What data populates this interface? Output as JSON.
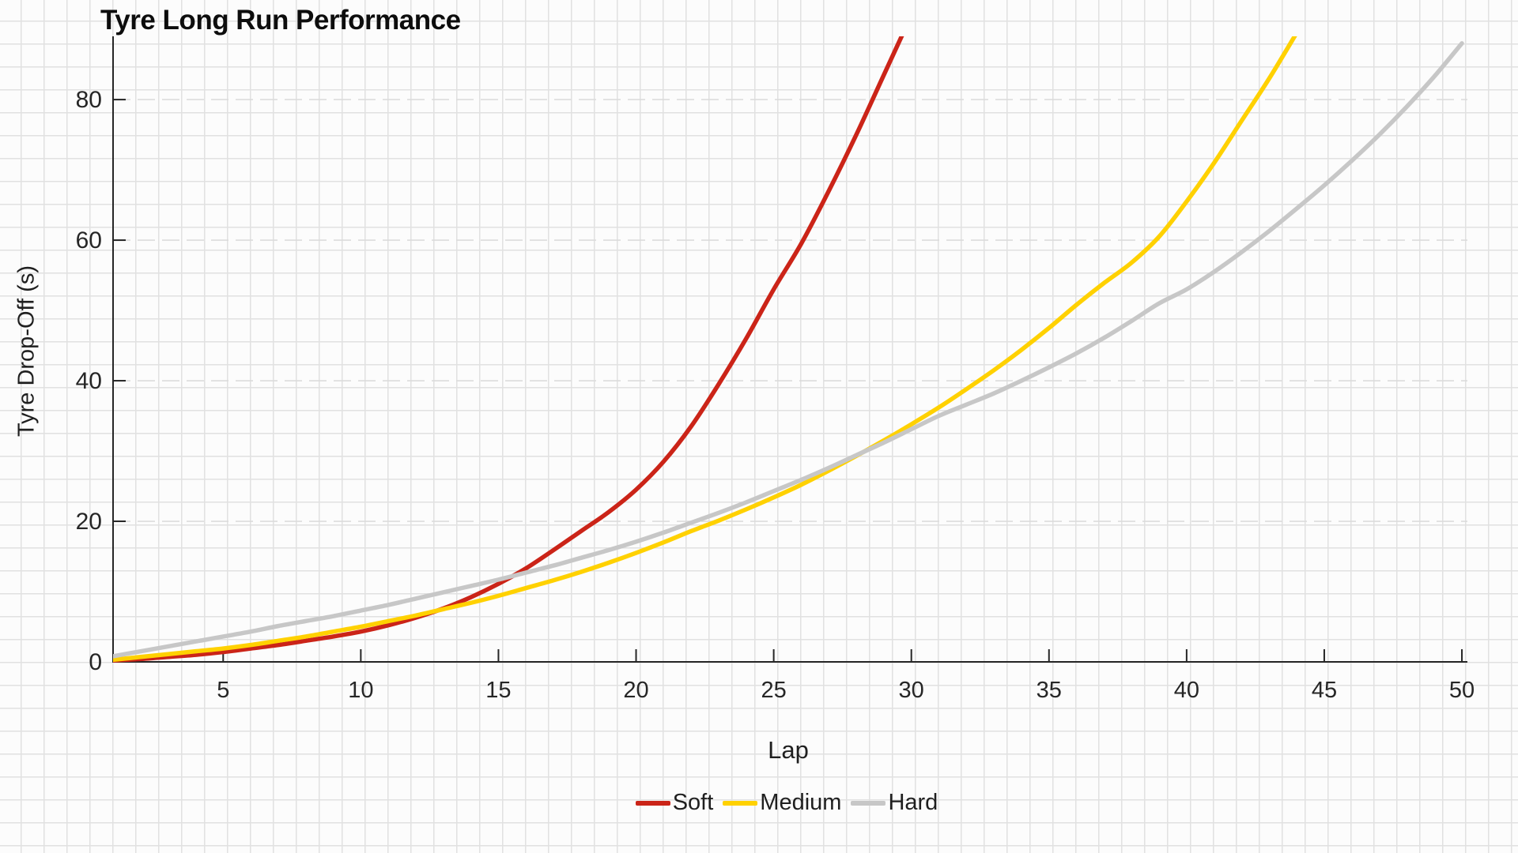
{
  "title": "Tyre Long Run Performance",
  "colors": {
    "soft": "#cb2418",
    "medium": "#ffd100",
    "hard": "#c7c7c7",
    "axis": "#262626",
    "text": "#1f1f1f",
    "gridline": "#dcdcdc",
    "background": "#fcfcfc"
  },
  "legend": {
    "items": [
      {
        "label": "Soft",
        "color": "#cb2418"
      },
      {
        "label": "Medium",
        "color": "#ffd100"
      },
      {
        "label": "Hard",
        "color": "#c7c7c7"
      }
    ],
    "position": "bottom-center"
  },
  "chart_data": {
    "type": "line",
    "title": "Tyre Long Run Performance",
    "xlabel": "Lap",
    "ylabel": "Tyre Drop-Off (s)",
    "xlim": [
      1,
      50.2
    ],
    "ylim": [
      0,
      89
    ],
    "x_ticks": [
      5,
      10,
      15,
      20,
      25,
      30,
      35,
      40,
      45,
      50
    ],
    "y_ticks": [
      0,
      20,
      40,
      60,
      80
    ],
    "grid": "horizontal dashed gridlines at y ticks over graph-paper background",
    "legend_position": "bottom-center",
    "series": [
      {
        "name": "Soft",
        "color": "#cb2418",
        "x_start": 1,
        "y": [
          0.2,
          0.4,
          0.7,
          1.0,
          1.4,
          1.9,
          2.4,
          3.0,
          3.6,
          4.3,
          5.2,
          6.3,
          7.6,
          9.2,
          11.1,
          13.3,
          15.9,
          18.6,
          21.3,
          24.5,
          28.5,
          33.5,
          39.5,
          46.0,
          53.0,
          59.5,
          67.0,
          75.0,
          83.5,
          92.0
        ]
      },
      {
        "name": "Medium",
        "color": "#ffd100",
        "x_start": 1,
        "y": [
          0.3,
          0.7,
          1.1,
          1.5,
          1.9,
          2.4,
          3.0,
          3.6,
          4.3,
          5.0,
          5.8,
          6.6,
          7.5,
          8.4,
          9.4,
          10.5,
          11.6,
          12.8,
          14.1,
          15.5,
          17.0,
          18.6,
          20.1,
          21.7,
          23.4,
          25.2,
          27.2,
          29.3,
          31.5,
          33.8,
          36.2,
          38.8,
          41.5,
          44.4,
          47.5,
          50.8,
          53.9,
          56.8,
          60.5,
          65.5,
          71.0,
          77.0,
          83.0,
          89.5
        ]
      },
      {
        "name": "Hard",
        "color": "#c7c7c7",
        "x_start": 1,
        "y": [
          0.8,
          1.5,
          2.2,
          2.9,
          3.6,
          4.3,
          5.1,
          5.8,
          6.5,
          7.3,
          8.1,
          9.0,
          9.9,
          10.8,
          11.7,
          12.7,
          13.7,
          14.8,
          15.9,
          17.1,
          18.4,
          19.8,
          21.2,
          22.7,
          24.3,
          25.9,
          27.6,
          29.4,
          31.2,
          33.1,
          35.0,
          36.6,
          38.2,
          40.0,
          41.9,
          43.9,
          46.1,
          48.5,
          51.0,
          53.0,
          55.5,
          58.3,
          61.3,
          64.5,
          67.8,
          71.3,
          75.0,
          79.0,
          83.3,
          88.0
        ]
      }
    ]
  }
}
